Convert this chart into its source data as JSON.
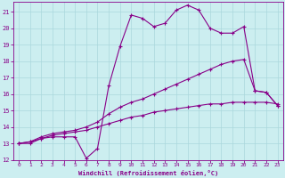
{
  "xlabel": "Windchill (Refroidissement éolien,°C)",
  "bg_color": "#cceef0",
  "grid_color": "#aad8dc",
  "line_color": "#880088",
  "xlim": [
    -0.5,
    23.5
  ],
  "ylim": [
    12,
    21.6
  ],
  "xticks": [
    0,
    1,
    2,
    3,
    4,
    5,
    6,
    7,
    8,
    9,
    10,
    11,
    12,
    13,
    14,
    15,
    16,
    17,
    18,
    19,
    20,
    21,
    22,
    23
  ],
  "yticks": [
    12,
    13,
    14,
    15,
    16,
    17,
    18,
    19,
    20,
    21
  ],
  "line1_x": [
    0,
    1,
    2,
    3,
    4,
    5,
    6,
    7,
    8,
    9,
    10,
    11,
    12,
    13,
    14,
    15,
    16,
    17,
    18,
    19,
    20,
    21,
    22,
    23
  ],
  "line1_y": [
    13.0,
    13.0,
    13.3,
    13.4,
    13.4,
    13.4,
    12.1,
    12.7,
    16.5,
    18.9,
    20.8,
    20.6,
    20.1,
    20.3,
    21.1,
    21.4,
    21.1,
    20.0,
    19.7,
    19.7,
    20.1,
    16.2,
    16.1,
    15.3
  ],
  "line2_x": [
    0,
    1,
    2,
    3,
    4,
    5,
    6,
    7,
    8,
    9,
    10,
    11,
    12,
    13,
    14,
    15,
    16,
    17,
    18,
    19,
    20,
    21,
    22,
    23
  ],
  "line2_y": [
    13.0,
    13.1,
    13.4,
    13.6,
    13.7,
    13.8,
    14.0,
    14.3,
    14.8,
    15.2,
    15.5,
    15.7,
    16.0,
    16.3,
    16.6,
    16.9,
    17.2,
    17.5,
    17.8,
    18.0,
    18.1,
    16.2,
    16.1,
    15.3
  ],
  "line3_x": [
    0,
    1,
    2,
    3,
    4,
    5,
    6,
    7,
    8,
    9,
    10,
    11,
    12,
    13,
    14,
    15,
    16,
    17,
    18,
    19,
    20,
    21,
    22,
    23
  ],
  "line3_y": [
    13.0,
    13.1,
    13.3,
    13.5,
    13.6,
    13.7,
    13.8,
    14.0,
    14.2,
    14.4,
    14.6,
    14.7,
    14.9,
    15.0,
    15.1,
    15.2,
    15.3,
    15.4,
    15.4,
    15.5,
    15.5,
    15.5,
    15.5,
    15.4
  ]
}
